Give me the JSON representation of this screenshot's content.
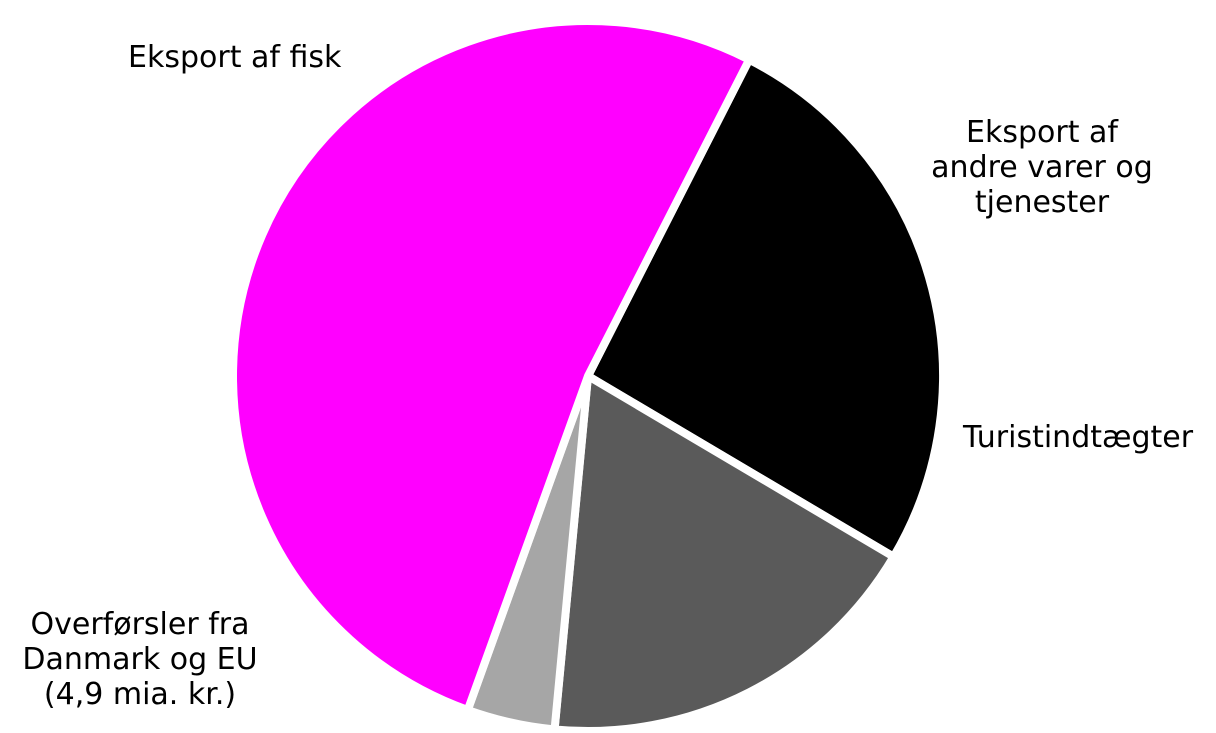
{
  "chart_data": {
    "type": "pie",
    "slices": [
      {
        "lines": [
          "Eksport af fisk"
        ],
        "value": 26,
        "color": "#000000"
      },
      {
        "lines": [
          "Eksport af",
          "andre varer og",
          "tjenester"
        ],
        "value": 18,
        "color": "#5a5a5a"
      },
      {
        "lines": [
          "Turistindtægter"
        ],
        "value": 4,
        "color": "#a6a6a6"
      },
      {
        "lines": [
          "Overførsler fra",
          "Danmark og EU",
          "(4,9 mia. kr.)"
        ],
        "value": 52,
        "color": "#ff00ff"
      }
    ],
    "legend": "none"
  }
}
